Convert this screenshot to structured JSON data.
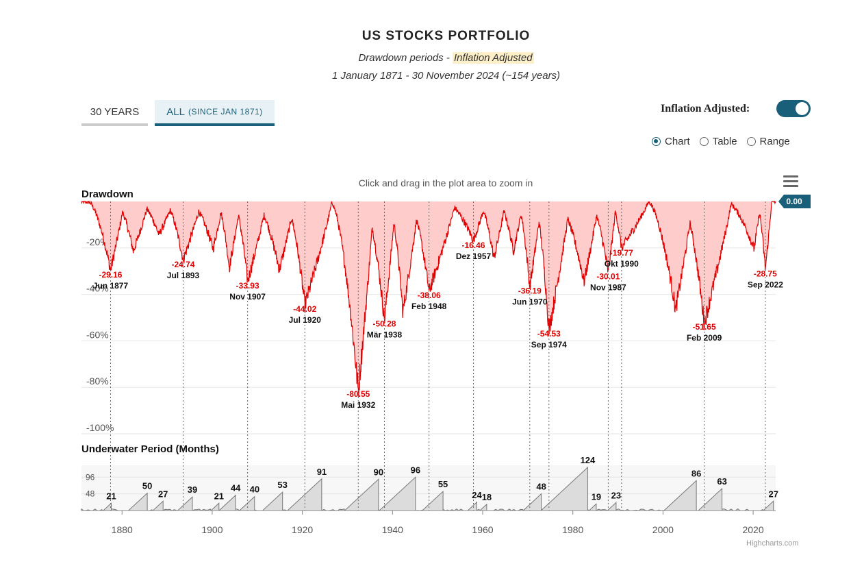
{
  "header": {
    "title": "US STOCKS PORTFOLIO",
    "subtitle_prefix": "Drawdown periods - ",
    "subtitle_highlight": "Inflation Adjusted",
    "period": "1 January 1871 - 30 November 2024 (~154 years)"
  },
  "tabs": [
    {
      "label": "30 YEARS",
      "sub": ""
    },
    {
      "label": "ALL",
      "sub": "(SINCE JAN 1871)"
    }
  ],
  "toggle": {
    "label": "Inflation Adjusted:",
    "on": true
  },
  "views": {
    "options": [
      "Chart",
      "Table",
      "Range"
    ],
    "selected": "Chart"
  },
  "zoom_hint": "Click and drag in the plot area to zoom in",
  "credits": "Highcharts.com",
  "colors": {
    "accent": "#1a5f7a",
    "drawdown_line": "#e00000",
    "drawdown_fill": "#ffcccc",
    "label_red": "#e00000"
  },
  "chart_data": [
    {
      "type": "area",
      "title": "Drawdown",
      "ylim": [
        -100,
        0
      ],
      "yticks": [
        "-20%",
        "-40%",
        "-60%",
        "-80%",
        "-100%"
      ],
      "current_value": "0.00",
      "troughs": [
        {
          "x": 1877.45,
          "y": -29.16,
          "label": "-29.16",
          "date": "Jun 1877"
        },
        {
          "x": 1882.5,
          "y": -21.0
        },
        {
          "x": 1888.2,
          "y": -14.0
        },
        {
          "x": 1893.55,
          "y": -24.74,
          "label": "-24.74",
          "date": "Jul 1893"
        },
        {
          "x": 1900.2,
          "y": -20.0
        },
        {
          "x": 1903.8,
          "y": -28.0
        },
        {
          "x": 1907.85,
          "y": -33.93,
          "label": "-33.93",
          "date": "Nov 1907"
        },
        {
          "x": 1914.9,
          "y": -29.0
        },
        {
          "x": 1920.55,
          "y": -44.02,
          "label": "-44.02",
          "date": "Jul 1920"
        },
        {
          "x": 1932.4,
          "y": -80.55,
          "label": "-80.55",
          "date": "Mai 1932"
        },
        {
          "x": 1938.2,
          "y": -50.28,
          "label": "-50.28",
          "date": "Mär 1938"
        },
        {
          "x": 1942.3,
          "y": -47.0
        },
        {
          "x": 1948.1,
          "y": -38.06,
          "label": "-38.06",
          "date": "Feb 1948"
        },
        {
          "x": 1957.95,
          "y": -16.46,
          "label": "-16.46",
          "date": "Dez 1957"
        },
        {
          "x": 1962.5,
          "y": -24.0
        },
        {
          "x": 1966.8,
          "y": -21.0
        },
        {
          "x": 1970.45,
          "y": -36.19,
          "label": "-36.19",
          "date": "Jun 1970"
        },
        {
          "x": 1974.7,
          "y": -54.53,
          "label": "-54.53",
          "date": "Sep 1974"
        },
        {
          "x": 1982.5,
          "y": -34.0
        },
        {
          "x": 1987.85,
          "y": -30.01,
          "label": "-30.01",
          "date": "Nov 1987"
        },
        {
          "x": 1990.8,
          "y": -19.77,
          "label": "-19.77",
          "date": "Okt 1990"
        },
        {
          "x": 2002.8,
          "y": -46.0
        },
        {
          "x": 2009.15,
          "y": -51.65,
          "label": "-51.65",
          "date": "Feb 2009"
        },
        {
          "x": 2020.2,
          "y": -20.0
        },
        {
          "x": 2022.7,
          "y": -28.75,
          "label": "-28.75",
          "date": "Sep 2022"
        }
      ]
    },
    {
      "type": "area",
      "title": "Underwater Period (Months)",
      "ylim": [
        0,
        130
      ],
      "yticks": [
        "48",
        "96"
      ],
      "xlim": [
        1871,
        2025
      ],
      "xticks": [
        "1880",
        "1900",
        "1920",
        "1940",
        "1960",
        "1980",
        "2000",
        "2020"
      ],
      "periods": [
        {
          "end": 1877.6,
          "months": 21
        },
        {
          "end": 1885.6,
          "months": 50
        },
        {
          "end": 1889.1,
          "months": 27
        },
        {
          "end": 1895.6,
          "months": 39
        },
        {
          "end": 1901.5,
          "months": 21
        },
        {
          "end": 1905.2,
          "months": 44
        },
        {
          "end": 1909.4,
          "months": 40
        },
        {
          "end": 1915.6,
          "months": 53
        },
        {
          "end": 1924.3,
          "months": 91
        },
        {
          "end": 1936.9,
          "months": 90
        },
        {
          "end": 1945.1,
          "months": 96
        },
        {
          "end": 1951.2,
          "months": 55
        },
        {
          "end": 1958.7,
          "months": 24
        },
        {
          "end": 1960.9,
          "months": 18
        },
        {
          "end": 1973.0,
          "months": 48
        },
        {
          "end": 1983.3,
          "months": 124
        },
        {
          "end": 1985.2,
          "months": 19
        },
        {
          "end": 1989.6,
          "months": 23
        },
        {
          "end": 2007.4,
          "months": 86
        },
        {
          "end": 2013.1,
          "months": 63
        },
        {
          "end": 2024.5,
          "months": 27
        }
      ]
    }
  ]
}
